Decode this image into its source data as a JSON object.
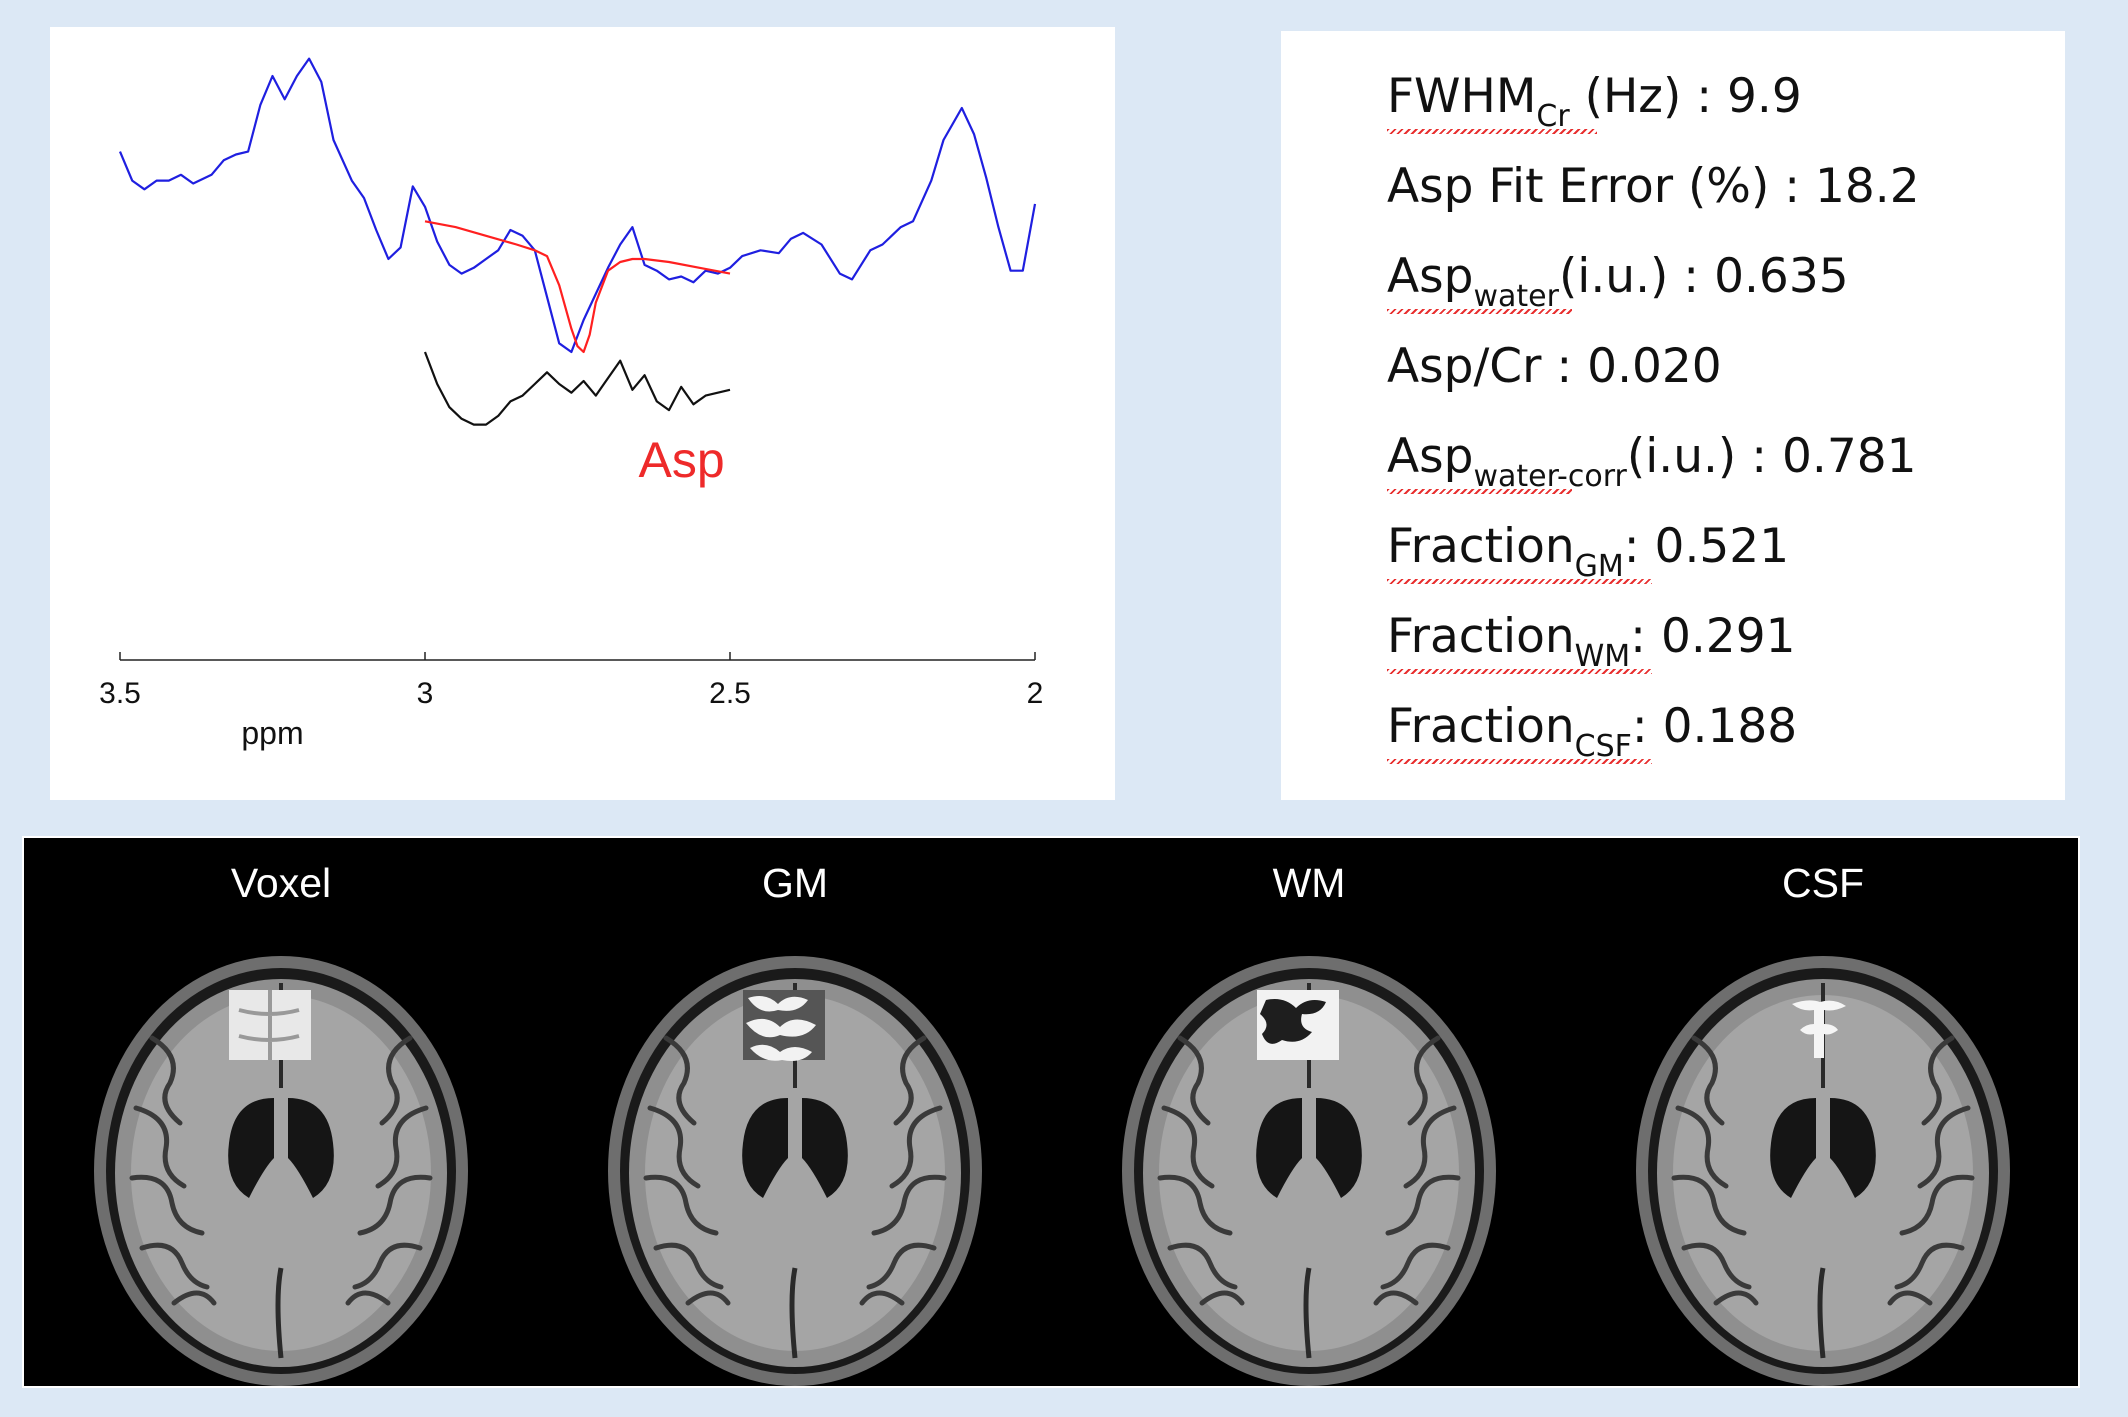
{
  "chart_data": {
    "type": "line",
    "xlabel": "ppm",
    "xlim": [
      3.5,
      2.0
    ],
    "x_reversed": true,
    "xticks": [
      "3.5",
      "3",
      "2.5",
      "2"
    ],
    "grid": false,
    "annotation": "Asp",
    "series": [
      {
        "role": "spectrum",
        "color": "#1f1fe0",
        "x": [
          3.5,
          3.48,
          3.46,
          3.44,
          3.42,
          3.4,
          3.38,
          3.35,
          3.33,
          3.31,
          3.29,
          3.27,
          3.25,
          3.23,
          3.21,
          3.19,
          3.17,
          3.15,
          3.12,
          3.1,
          3.08,
          3.06,
          3.04,
          3.02,
          3.0,
          2.98,
          2.96,
          2.94,
          2.92,
          2.9,
          2.88,
          2.86,
          2.84,
          2.82,
          2.8,
          2.78,
          2.76,
          2.74,
          2.72,
          2.7,
          2.68,
          2.66,
          2.64,
          2.62,
          2.6,
          2.58,
          2.56,
          2.54,
          2.52,
          2.5,
          2.48,
          2.45,
          2.42,
          2.4,
          2.38,
          2.35,
          2.32,
          2.3,
          2.27,
          2.25,
          2.22,
          2.2,
          2.17,
          2.15,
          2.12,
          2.1,
          2.08,
          2.06,
          2.04,
          2.02,
          2.0
        ],
        "y": [
          0.74,
          0.64,
          0.61,
          0.64,
          0.64,
          0.66,
          0.63,
          0.66,
          0.71,
          0.73,
          0.74,
          0.9,
          1.0,
          0.92,
          1.0,
          1.06,
          0.98,
          0.78,
          0.64,
          0.58,
          0.47,
          0.37,
          0.41,
          0.62,
          0.55,
          0.43,
          0.35,
          0.32,
          0.34,
          0.37,
          0.4,
          0.47,
          0.45,
          0.4,
          0.24,
          0.08,
          0.05,
          0.16,
          0.25,
          0.34,
          0.42,
          0.48,
          0.35,
          0.33,
          0.3,
          0.31,
          0.29,
          0.33,
          0.32,
          0.34,
          0.38,
          0.4,
          0.39,
          0.44,
          0.46,
          0.42,
          0.32,
          0.3,
          0.4,
          0.42,
          0.48,
          0.5,
          0.64,
          0.78,
          0.89,
          0.8,
          0.65,
          0.48,
          0.33,
          0.33,
          0.56
        ]
      },
      {
        "role": "fit",
        "color": "#ff2020",
        "x": [
          3.0,
          2.95,
          2.9,
          2.85,
          2.82,
          2.8,
          2.78,
          2.76,
          2.75,
          2.74,
          2.73,
          2.72,
          2.7,
          2.68,
          2.66,
          2.64,
          2.6,
          2.55,
          2.5
        ],
        "y": [
          0.5,
          0.48,
          0.45,
          0.42,
          0.4,
          0.38,
          0.28,
          0.13,
          0.07,
          0.05,
          0.11,
          0.22,
          0.33,
          0.36,
          0.37,
          0.37,
          0.36,
          0.34,
          0.32
        ]
      },
      {
        "role": "residual",
        "color": "#111111",
        "x": [
          3.0,
          2.98,
          2.96,
          2.94,
          2.92,
          2.9,
          2.88,
          2.86,
          2.84,
          2.82,
          2.8,
          2.78,
          2.76,
          2.74,
          2.72,
          2.7,
          2.68,
          2.66,
          2.64,
          2.62,
          2.6,
          2.58,
          2.56,
          2.54,
          2.52,
          2.5
        ],
        "y": [
          0.05,
          -0.06,
          -0.14,
          -0.18,
          -0.2,
          -0.2,
          -0.17,
          -0.12,
          -0.1,
          -0.06,
          -0.02,
          -0.06,
          -0.09,
          -0.05,
          -0.1,
          -0.04,
          0.02,
          -0.08,
          -0.03,
          -0.12,
          -0.15,
          -0.07,
          -0.13,
          -0.1,
          -0.09,
          -0.08
        ]
      }
    ]
  },
  "metrics": [
    {
      "pre": "FWHM",
      "sub": "Cr",
      "post": " (Hz) : 9.9",
      "squiggle": true
    },
    {
      "pre": "Asp Fit Error (%) : 18.2",
      "sub": "",
      "post": "",
      "squiggle": false
    },
    {
      "pre": "Asp",
      "sub": "water",
      "post": "(i.u.) : 0.635",
      "squiggle": true
    },
    {
      "pre": "Asp/Cr : 0.020",
      "sub": "",
      "post": "",
      "squiggle": false
    },
    {
      "pre": "Asp",
      "sub": "water-corr",
      "post": "(i.u.) : 0.781",
      "squiggle": true
    },
    {
      "pre": "Fraction",
      "sub": "GM",
      "post": ": 0.521",
      "squiggle": true
    },
    {
      "pre": "Fraction",
      "sub": "WM",
      "post": ": 0.291",
      "squiggle": true
    },
    {
      "pre": "Fraction",
      "sub": "CSF",
      "post": ": 0.188",
      "squiggle": true
    }
  ],
  "brain_panels": [
    {
      "label": "Voxel",
      "overlay": "voxel"
    },
    {
      "label": "GM",
      "overlay": "gm"
    },
    {
      "label": "WM",
      "overlay": "wm"
    },
    {
      "label": "CSF",
      "overlay": "csf"
    }
  ]
}
